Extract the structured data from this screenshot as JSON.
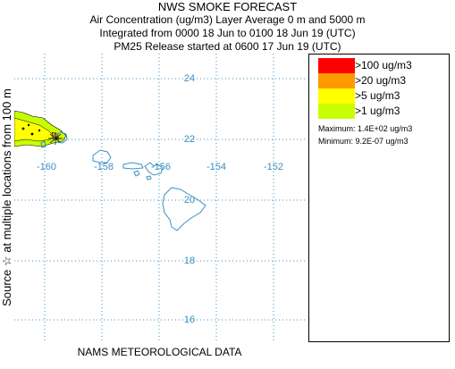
{
  "header": {
    "title": "NWS SMOKE FORECAST",
    "line2": "Air Concentration (ug/m3) Layer Average    0 m and  5000 m",
    "line3": "Integrated from 0000 18 Jun to 0100 18 Jun 19 (UTC)",
    "line4": "PM25 Release started at 0600 17 Jun 19 (UTC)"
  },
  "side_label": "Source ☆    at multiple locations      from   100 m",
  "bottom_label": "NAMS METEOROLOGICAL DATA",
  "map": {
    "lat_labels": [
      "24",
      "22",
      "20",
      "18",
      "16"
    ],
    "lon_labels": [
      "-160",
      "-158",
      "-156",
      "-154",
      "-152"
    ],
    "grid_color": "#3a8fc0",
    "coast_color": "#3a8fc0",
    "plume_colors": [
      "#c8ff00",
      "#ffff00",
      "#ff9900"
    ],
    "source_marker": "star"
  },
  "legend": {
    "items": [
      {
        "label": ">100 ug/m3",
        "color": "#ff0000"
      },
      {
        "label": ">20 ug/m3",
        "color": "#ff9900"
      },
      {
        "label": ">5 ug/m3",
        "color": "#ffff00"
      },
      {
        "label": ">1 ug/m3",
        "color": "#c8ff00"
      }
    ],
    "maximum": "Maximum: 1.4E+02 ug/m3",
    "minimum": "Minimum: 9.2E-07 ug/m3"
  }
}
